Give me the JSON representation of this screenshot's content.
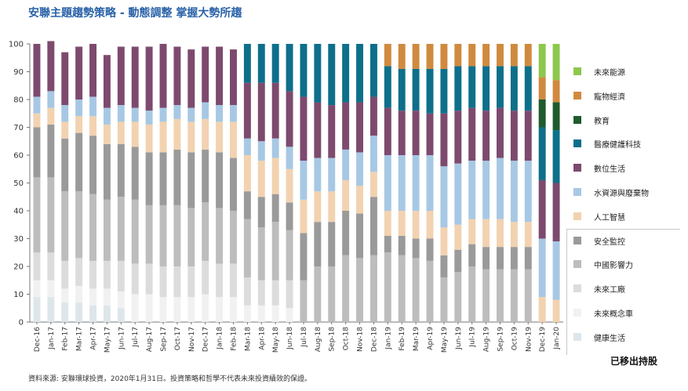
{
  "title": "安聯主題趨勢策略 - 動態調整 掌握大勢所趨",
  "source": "資料來源: 安聯環球投資，2020年1月31日。投資策略和哲學不代表未來投資績效的保證。",
  "note": "已移出持股",
  "chart_data": {
    "type": "bar",
    "stacked": true,
    "ylim": [
      0,
      100
    ],
    "yticks": [
      0,
      10,
      20,
      30,
      40,
      50,
      60,
      70,
      80,
      90,
      100
    ],
    "grid": false,
    "legend_placement": "right",
    "categories": [
      "Dec-16",
      "Jan-17",
      "Feb-17",
      "Mar-17",
      "Apr-17",
      "May-17",
      "Jun-17",
      "Jul-17",
      "Aug-17",
      "Sep-17",
      "Oct-17",
      "Nov-17",
      "Dec-17",
      "Jan-18",
      "Feb-18",
      "Mar-18",
      "Apr-18",
      "May-18",
      "Jun-18",
      "Jul-18",
      "Aug-18",
      "Sep-18",
      "Oct-18",
      "Nov-18",
      "Dec-18",
      "Jan-19",
      "Feb-19",
      "Mar-19",
      "Apr-19",
      "May-19",
      "Jun-19",
      "Jul-19",
      "Aug-19",
      "Sep-19",
      "Oct-19",
      "Nov-19",
      "Dec-19",
      "Jan-20"
    ],
    "series": [
      {
        "name": "健康生活",
        "color": "#dde6ea",
        "values": [
          9,
          9,
          7,
          7,
          6,
          6,
          5,
          0,
          0,
          0,
          0,
          0,
          0,
          0,
          0,
          0,
          0,
          0,
          0,
          0,
          0,
          0,
          0,
          0,
          0,
          0,
          0,
          0,
          0,
          0,
          0,
          0,
          0,
          0,
          0,
          0,
          0,
          0
        ]
      },
      {
        "name": "未來概念車",
        "color": "#f1f1f1",
        "values": [
          6,
          6,
          5,
          6,
          6,
          6,
          6,
          10,
          10,
          9,
          9,
          9,
          10,
          9,
          9,
          6,
          6,
          6,
          5,
          0,
          0,
          0,
          0,
          0,
          0,
          0,
          0,
          0,
          0,
          0,
          0,
          0,
          0,
          0,
          0,
          0,
          0,
          0
        ]
      },
      {
        "name": "未來工廠",
        "color": "#dcdcdc",
        "values": [
          10,
          10,
          10,
          10,
          10,
          10,
          11,
          11,
          11,
          11,
          11,
          11,
          12,
          12,
          12,
          10,
          9,
          9,
          10,
          0,
          0,
          0,
          0,
          0,
          0,
          0,
          0,
          0,
          0,
          0,
          0,
          0,
          0,
          0,
          0,
          0,
          0,
          0
        ]
      },
      {
        "name": "中國影響力",
        "color": "#bdbdbd",
        "values": [
          27,
          27,
          25,
          24,
          24,
          22,
          23,
          23,
          21,
          22,
          22,
          21,
          21,
          20,
          19,
          21,
          19,
          21,
          18,
          15,
          20,
          20,
          24,
          23,
          24,
          25,
          24,
          23,
          22,
          16,
          18,
          20,
          19,
          19,
          19,
          19,
          0,
          0
        ]
      },
      {
        "name": "安全監控",
        "color": "#9a9a9a",
        "values": [
          18,
          19,
          19,
          21,
          21,
          20,
          19,
          19,
          19,
          19,
          20,
          20,
          19,
          20,
          19,
          10,
          11,
          10,
          10,
          17,
          16,
          16,
          16,
          16,
          21,
          6,
          7,
          7,
          8,
          8,
          8,
          8,
          8,
          8,
          8,
          8,
          0,
          0
        ]
      },
      {
        "name": "人工智慧",
        "color": "#f2d2b0",
        "values": [
          5,
          6,
          6,
          6,
          7,
          7,
          8,
          9,
          10,
          11,
          11,
          11,
          11,
          11,
          13,
          13,
          13,
          13,
          12,
          12,
          11,
          11,
          11,
          10,
          9,
          9,
          9,
          10,
          10,
          10,
          9,
          9,
          10,
          10,
          9,
          9,
          9,
          8
        ]
      },
      {
        "name": "水資源與廢棄物",
        "color": "#a7c8e4",
        "values": [
          6,
          6,
          6,
          6,
          7,
          6,
          6,
          5,
          5,
          5,
          5,
          5,
          6,
          6,
          6,
          6,
          7,
          7,
          8,
          14,
          12,
          12,
          11,
          12,
          13,
          20,
          20,
          20,
          20,
          22,
          22,
          21,
          21,
          22,
          22,
          22,
          21,
          21
        ]
      },
      {
        "name": "數位生活",
        "color": "#7d4a6e",
        "values": [
          19,
          18,
          19,
          19,
          19,
          19,
          21,
          22,
          23,
          23,
          21,
          21,
          20,
          21,
          20,
          20,
          21,
          20,
          20,
          23,
          20,
          19,
          17,
          18,
          14,
          17,
          16,
          16,
          15,
          19,
          19,
          19,
          18,
          18,
          18,
          18,
          21,
          21
        ]
      },
      {
        "name": "醫療健護科技",
        "color": "#0e6f8a",
        "values": [
          0,
          0,
          0,
          0,
          0,
          0,
          0,
          0,
          0,
          0,
          0,
          0,
          0,
          0,
          0,
          14,
          14,
          14,
          17,
          19,
          21,
          22,
          21,
          21,
          19,
          15,
          15,
          15,
          16,
          16,
          16,
          15,
          16,
          15,
          16,
          16,
          19,
          19
        ]
      },
      {
        "name": "教育",
        "color": "#1f5b2f",
        "values": [
          0,
          0,
          0,
          0,
          0,
          0,
          0,
          0,
          0,
          0,
          0,
          0,
          0,
          0,
          0,
          0,
          0,
          0,
          0,
          0,
          0,
          0,
          0,
          0,
          0,
          0,
          0,
          0,
          0,
          0,
          0,
          0,
          0,
          0,
          0,
          0,
          10,
          10
        ]
      },
      {
        "name": "寵物經濟",
        "color": "#d08a3f",
        "values": [
          0,
          0,
          0,
          0,
          0,
          0,
          0,
          0,
          0,
          0,
          0,
          0,
          0,
          0,
          0,
          0,
          0,
          0,
          0,
          0,
          0,
          0,
          0,
          0,
          0,
          8,
          9,
          9,
          9,
          9,
          8,
          8,
          8,
          8,
          8,
          8,
          8,
          8
        ]
      },
      {
        "name": "未來能源",
        "color": "#8dc74d",
        "values": [
          0,
          0,
          0,
          0,
          0,
          0,
          0,
          0,
          0,
          0,
          0,
          0,
          0,
          0,
          0,
          0,
          0,
          0,
          0,
          0,
          0,
          0,
          0,
          0,
          0,
          0,
          0,
          0,
          0,
          0,
          0,
          0,
          0,
          0,
          0,
          0,
          12,
          13
        ]
      }
    ],
    "removed_series": [
      "安全監控",
      "中國影響力",
      "未來工廠",
      "未來概念車",
      "健康生活"
    ]
  }
}
